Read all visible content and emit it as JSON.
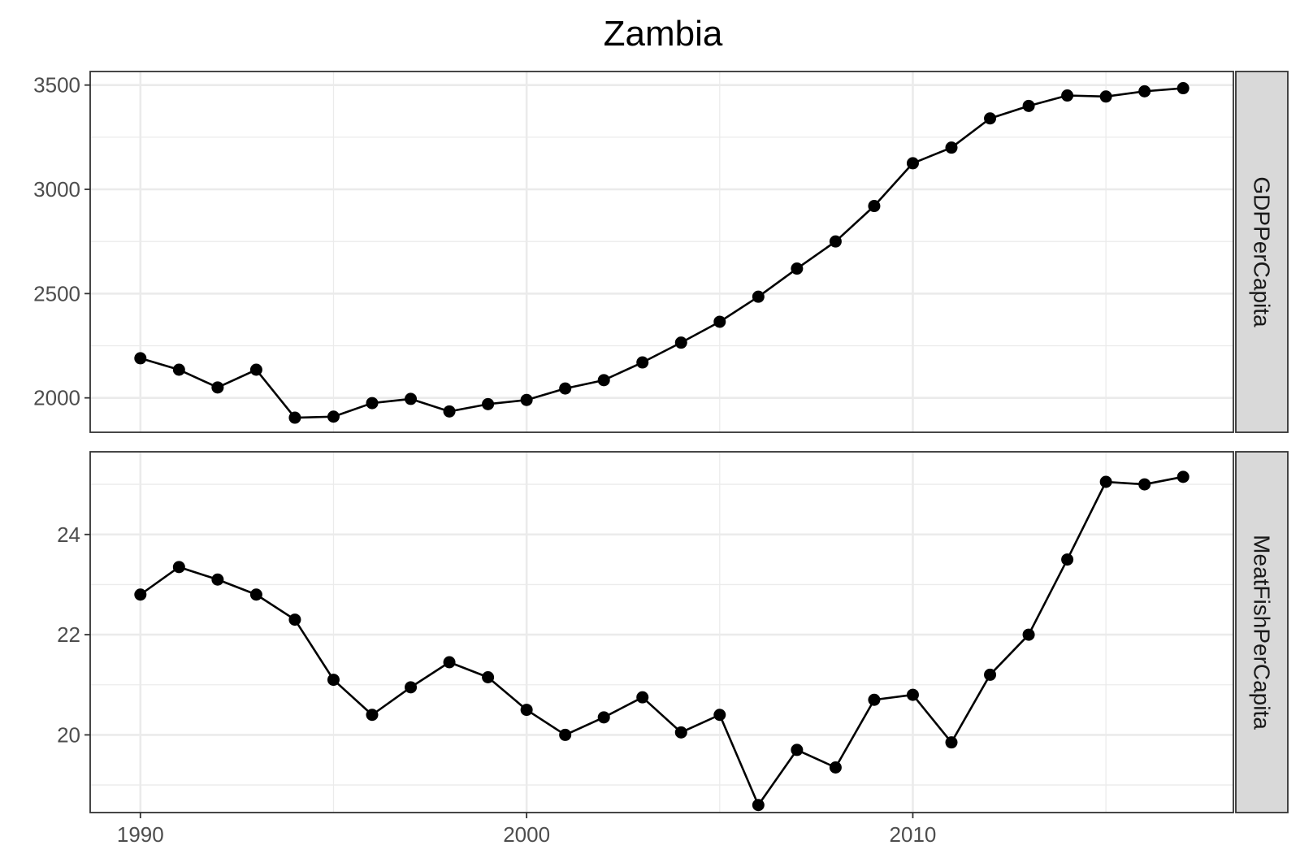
{
  "chart_data": {
    "type": "line",
    "title": "Zambia",
    "x": [
      1990,
      1991,
      1992,
      1993,
      1994,
      1995,
      1996,
      1997,
      1998,
      1999,
      2000,
      2001,
      2002,
      2003,
      2004,
      2005,
      2006,
      2007,
      2008,
      2009,
      2010,
      2011,
      2012,
      2013,
      2014,
      2015,
      2016,
      2017
    ],
    "x_ticks": [
      1990,
      2000,
      2010
    ],
    "xlim": [
      1988.7,
      2018.3
    ],
    "grid": true,
    "markers": true,
    "panels": [
      {
        "name": "GDPPerCapita",
        "ylim": [
          1835,
          3565
        ],
        "y_ticks": [
          2000,
          2500,
          3000,
          3500
        ],
        "y_minor_ticks": [
          2250,
          2750,
          3250
        ],
        "values": [
          2190,
          2135,
          2050,
          2135,
          1905,
          1910,
          1975,
          1995,
          1935,
          1970,
          1990,
          2045,
          2085,
          2170,
          2265,
          2365,
          2485,
          2620,
          2750,
          2920,
          3125,
          3200,
          3340,
          3400,
          3450,
          3445,
          3470,
          3485
        ]
      },
      {
        "name": "MeatFishPerCapita",
        "ylim": [
          18.45,
          25.65
        ],
        "y_ticks": [
          20,
          22,
          24
        ],
        "y_minor_ticks": [
          19,
          21,
          23,
          25
        ],
        "values": [
          22.8,
          23.35,
          23.1,
          22.8,
          22.3,
          21.1,
          20.4,
          20.95,
          21.45,
          21.15,
          20.5,
          20.0,
          20.35,
          20.75,
          20.05,
          20.4,
          18.6,
          19.7,
          19.35,
          20.7,
          20.8,
          19.85,
          21.2,
          22.0,
          23.5,
          25.05,
          25.0,
          25.15
        ]
      }
    ],
    "colors": {
      "series": "#000000",
      "grid": "#ebebeb",
      "border": "#333333",
      "strip": "#d9d9d9"
    }
  }
}
